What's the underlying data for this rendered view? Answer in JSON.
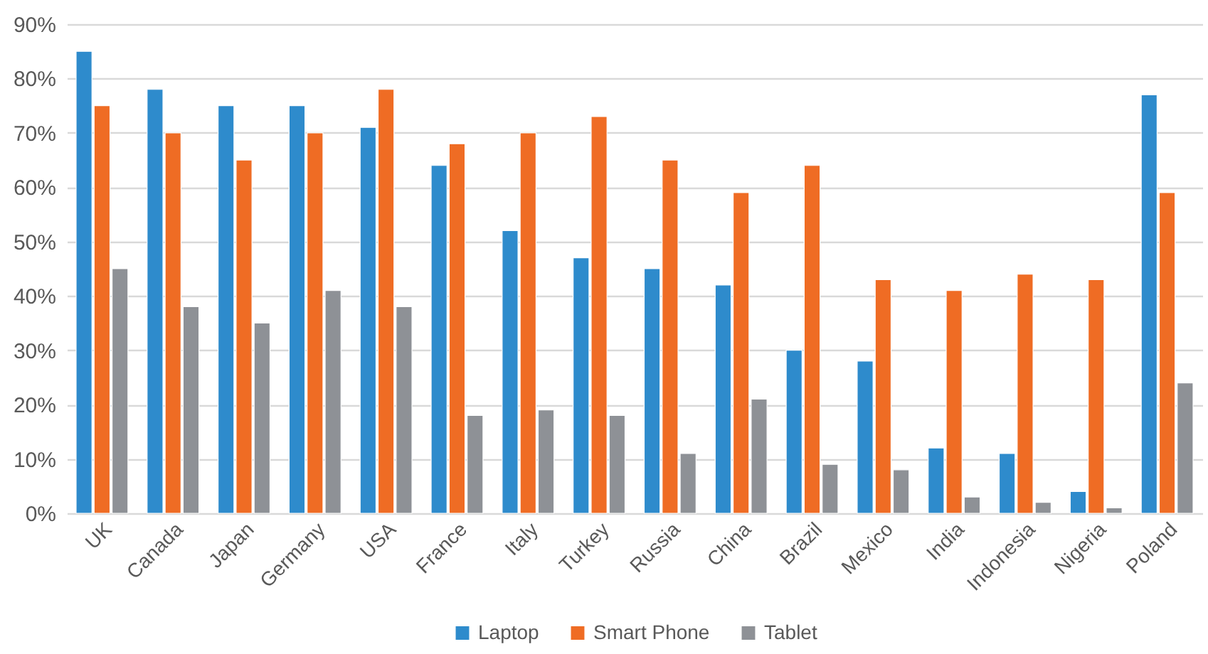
{
  "chart_data": {
    "type": "bar",
    "categories": [
      "UK",
      "Canada",
      "Japan",
      "Germany",
      "USA",
      "France",
      "Italy",
      "Turkey",
      "Russia",
      "China",
      "Brazil",
      "Mexico",
      "India",
      "Indonesia",
      "Nigeria",
      "Poland"
    ],
    "series": [
      {
        "name": "Laptop",
        "color": "#2e8bcc",
        "values": [
          85,
          78,
          75,
          75,
          71,
          64,
          52,
          47,
          45,
          42,
          30,
          28,
          12,
          11,
          4,
          77
        ]
      },
      {
        "name": "Smart Phone",
        "color": "#ef6c24",
        "values": [
          75,
          70,
          65,
          70,
          78,
          68,
          70,
          73,
          65,
          59,
          64,
          43,
          41,
          44,
          43,
          59
        ]
      },
      {
        "name": "Tablet",
        "color": "#8e9196",
        "values": [
          45,
          38,
          35,
          41,
          38,
          18,
          19,
          18,
          11,
          21,
          9,
          8,
          3,
          2,
          1,
          24
        ]
      }
    ],
    "ylim": [
      0,
      90
    ],
    "yticks": [
      {
        "value": 0,
        "label": "0%"
      },
      {
        "value": 10,
        "label": "10%"
      },
      {
        "value": 20,
        "label": "20%"
      },
      {
        "value": 30,
        "label": "30%"
      },
      {
        "value": 40,
        "label": "40%"
      },
      {
        "value": 50,
        "label": "50%"
      },
      {
        "value": 60,
        "label": "60%"
      },
      {
        "value": 70,
        "label": "70%"
      },
      {
        "value": 80,
        "label": "80%"
      },
      {
        "value": 90,
        "label": "90%"
      }
    ],
    "grid": "y",
    "legend": "bottom"
  }
}
